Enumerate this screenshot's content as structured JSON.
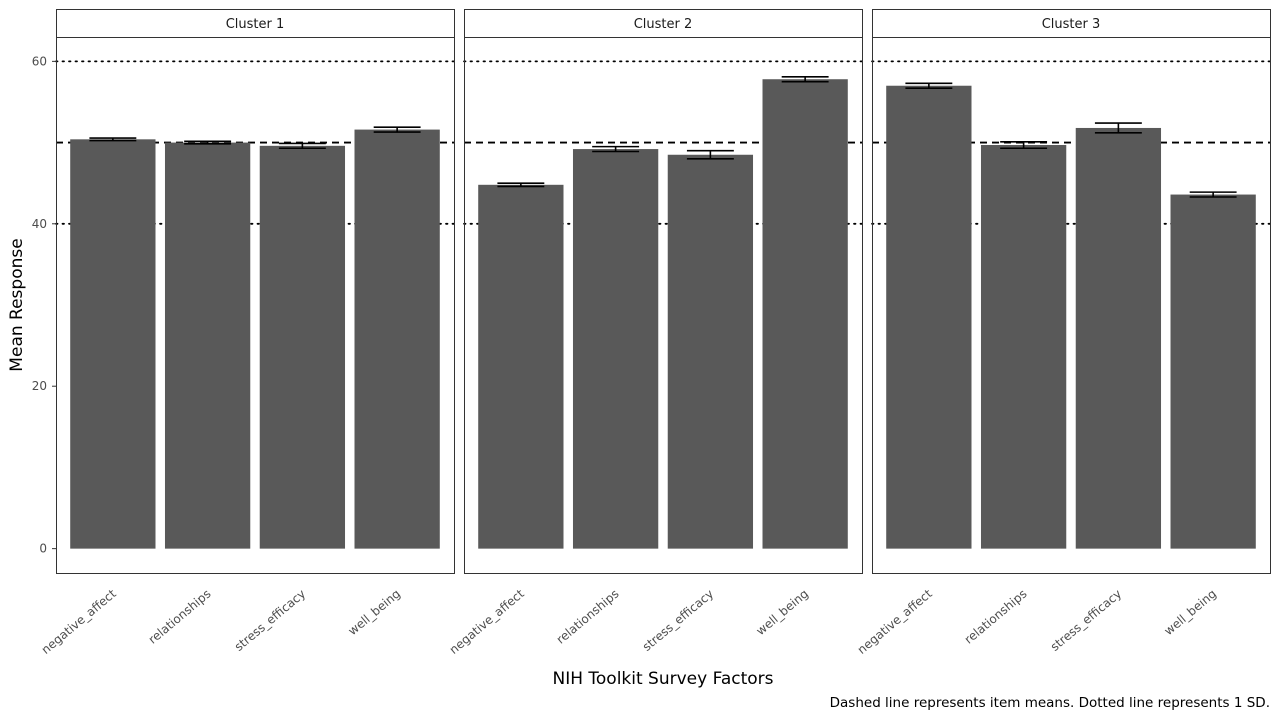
{
  "chart_data": {
    "type": "bar",
    "xlabel": "NIH Toolkit Survey Factors",
    "ylabel": "Mean Response",
    "caption": "Dashed line represents item means. Dotted line represents 1 SD.",
    "ylim": [
      -3,
      63
    ],
    "yticks": [
      0,
      20,
      40,
      60
    ],
    "categories": [
      "negative_affect",
      "relationships",
      "stress_efficacy",
      "well_being"
    ],
    "reference_lines": {
      "mean": {
        "value": 50,
        "style": "dashed"
      },
      "sd": {
        "values": [
          40,
          60
        ],
        "style": "dotted"
      }
    },
    "bar_color": "#595959",
    "grid": false,
    "panels": [
      {
        "label": "Cluster 1",
        "values": [
          50.4,
          50.0,
          49.6,
          51.6
        ],
        "error": [
          0.15,
          0.15,
          0.3,
          0.3
        ]
      },
      {
        "label": "Cluster 2",
        "values": [
          44.8,
          49.2,
          48.5,
          57.8
        ],
        "error": [
          0.2,
          0.3,
          0.5,
          0.3
        ]
      },
      {
        "label": "Cluster 3",
        "values": [
          57.0,
          49.7,
          51.8,
          43.6
        ],
        "error": [
          0.3,
          0.4,
          0.6,
          0.3
        ]
      }
    ]
  }
}
